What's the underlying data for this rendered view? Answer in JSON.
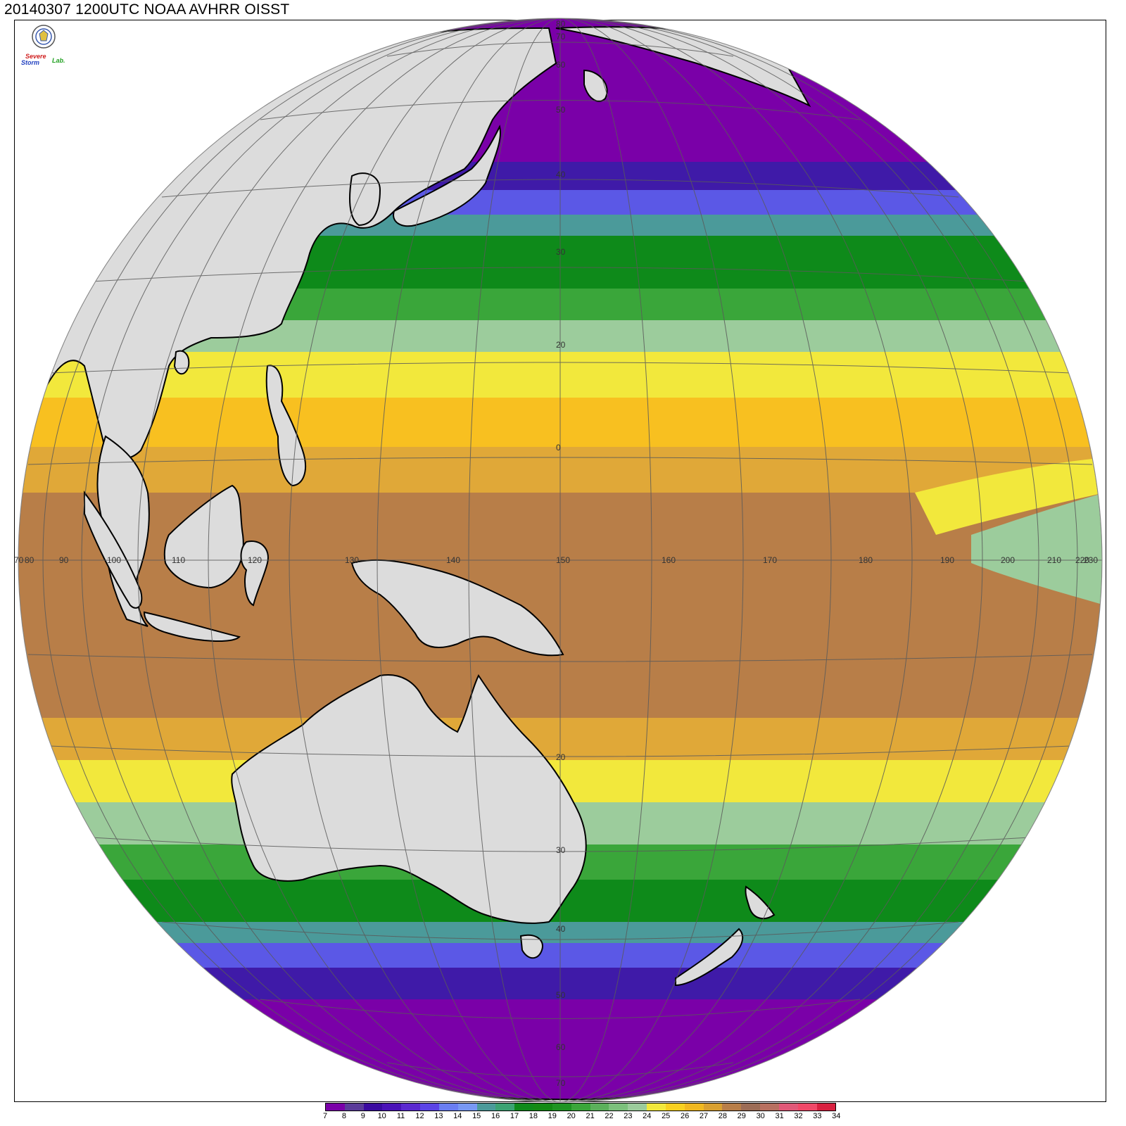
{
  "title": "20140307 1200UTC NOAA AVHRR OISST",
  "logo": {
    "icon": "institution-seal-icon",
    "text_line1": "Severe",
    "text_line2": "Storm",
    "text_line3": "Lab."
  },
  "map": {
    "projection": "orthographic",
    "center_lon": 155,
    "center_lat": 0,
    "land_color": "#dcdcdc",
    "coastline_color": "#000000",
    "grid_color": "#555555",
    "lon_labels": [
      "70",
      "80",
      "90",
      "100",
      "110",
      "120",
      "130",
      "140",
      "150",
      "160",
      "170",
      "180",
      "190",
      "200",
      "210",
      "220",
      "230"
    ],
    "lat_labels": [
      "80",
      "70",
      "60",
      "50",
      "40",
      "30",
      "20",
      "0",
      "20",
      "30",
      "40",
      "50",
      "60",
      "70"
    ]
  },
  "colorbar": {
    "colors": [
      "#7a00a8",
      "#5a3b99",
      "#3a0aa0",
      "#4a12b8",
      "#5a28d0",
      "#5b44e6",
      "#6a7ef2",
      "#7898f4",
      "#4b9a9a",
      "#3ca373",
      "#0e8a1a",
      "#138a14",
      "#1e9422",
      "#3aa63a",
      "#5bb05b",
      "#7cc07c",
      "#9ccc9c",
      "#f2e83c",
      "#f8d020",
      "#f0b820",
      "#d9a030",
      "#b87e48",
      "#9c6c56",
      "#b87060",
      "#e05878",
      "#f04868",
      "#d82040"
    ],
    "labels": [
      "7",
      "8",
      "9",
      "10",
      "11",
      "12",
      "13",
      "14",
      "15",
      "16",
      "17",
      "18",
      "19",
      "20",
      "21",
      "22",
      "23",
      "24",
      "25",
      "26",
      "27",
      "28",
      "29",
      "30",
      "31",
      "32",
      "33",
      "34"
    ]
  }
}
